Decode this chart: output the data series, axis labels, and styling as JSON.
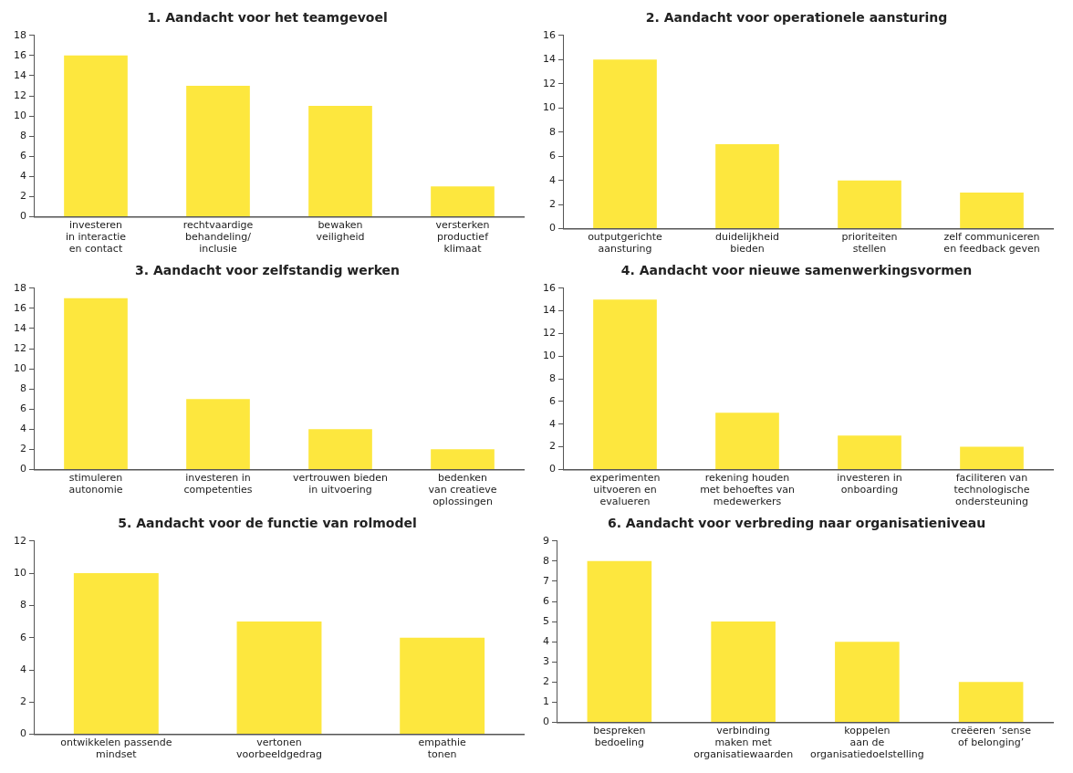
{
  "chart_data": [
    {
      "type": "bar",
      "title": "1. Aandacht voor het teamgevoel",
      "categories": [
        "investeren\nin interactie\nen contact",
        "rechtvaardige\nbehandeling/\ninclusie",
        "bewaken\nveiligheid",
        "versterken\nproductief\nklimaat"
      ],
      "values": [
        16,
        13,
        11,
        3
      ],
      "color": "#fde73e",
      "ylim": [
        0,
        18
      ],
      "yticks": [
        0,
        2,
        4,
        6,
        8,
        10,
        12,
        14,
        16,
        18
      ],
      "grid": false,
      "legend": false
    },
    {
      "type": "bar",
      "title": "2. Aandacht voor operationele aansturing",
      "categories": [
        "outputgerichte\naansturing",
        "duidelijkheid\nbieden",
        "prioriteiten\nstellen",
        "zelf communiceren\nen feedback geven"
      ],
      "values": [
        14,
        7,
        4,
        3
      ],
      "color": "#fde73e",
      "ylim": [
        0,
        16
      ],
      "yticks": [
        0,
        2,
        4,
        6,
        8,
        10,
        12,
        14,
        16
      ],
      "grid": false,
      "legend": false
    },
    {
      "type": "bar",
      "title": "3. Aandacht voor zelfstandig werken",
      "categories": [
        "stimuleren\nautonomie",
        "investeren in\ncompetenties",
        "vertrouwen bieden\nin uitvoering",
        "bedenken\nvan creatieve\noplossingen"
      ],
      "values": [
        17,
        7,
        4,
        2
      ],
      "color": "#fde73e",
      "ylim": [
        0,
        18
      ],
      "yticks": [
        0,
        2,
        4,
        6,
        8,
        10,
        12,
        14,
        16,
        18
      ],
      "grid": false,
      "legend": false
    },
    {
      "type": "bar",
      "title": "4. Aandacht voor nieuwe samenwerkingsvormen",
      "categories": [
        "experimenten\nuitvoeren en\nevalueren",
        "rekening houden\nmet behoeftes van\nmedewerkers",
        "investeren in\nonboarding",
        "faciliteren van\ntechnologische\nondersteuning"
      ],
      "values": [
        15,
        5,
        3,
        2
      ],
      "color": "#fde73e",
      "ylim": [
        0,
        16
      ],
      "yticks": [
        0,
        2,
        4,
        6,
        8,
        10,
        12,
        14,
        16
      ],
      "grid": false,
      "legend": false
    },
    {
      "type": "bar",
      "title": "5. Aandacht voor de functie van rolmodel",
      "categories": [
        "ontwikkelen passende\nmindset",
        "vertonen\nvoorbeeldgedrag",
        "empathie\ntonen"
      ],
      "values": [
        10,
        7,
        6
      ],
      "color": "#fde73e",
      "ylim": [
        0,
        12
      ],
      "yticks": [
        0,
        2,
        4,
        6,
        8,
        10,
        12
      ],
      "grid": false,
      "legend": false
    },
    {
      "type": "bar",
      "title": "6. Aandacht voor verbreding naar organisatieniveau",
      "categories": [
        "bespreken\nbedoeling",
        "verbinding\nmaken met\norganisatiewaarden",
        "koppelen\naan de\norganisatiedoelstelling",
        "creëeren ‘sense\nof belonging’"
      ],
      "values": [
        8,
        5,
        4,
        2
      ],
      "color": "#fde73e",
      "ylim": [
        0,
        9
      ],
      "yticks": [
        0,
        1,
        2,
        3,
        4,
        5,
        6,
        7,
        8,
        9
      ],
      "grid": false,
      "legend": false
    }
  ]
}
